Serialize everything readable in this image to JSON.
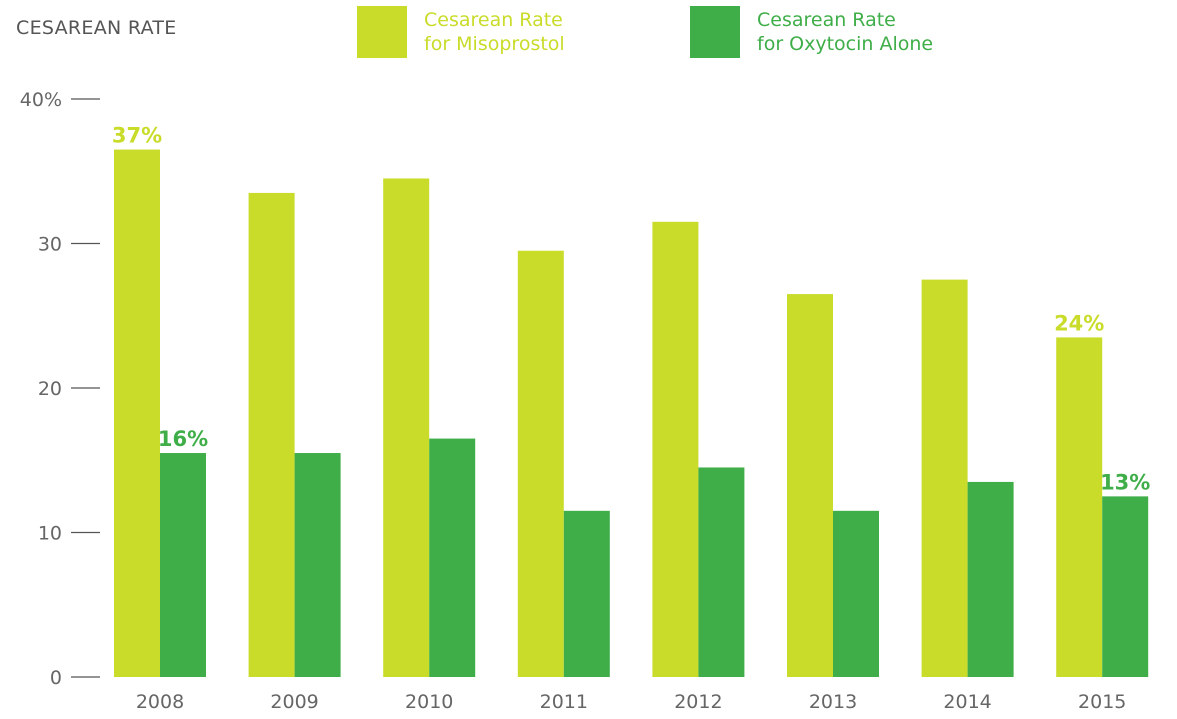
{
  "colors": {
    "misoprostol": "#c9dc2a",
    "oxytocin": "#3fae49",
    "axis": "#555555",
    "tick_text": "#666666"
  },
  "legend": [
    {
      "line1": "Cesarean Rate",
      "line2": "for Misoprostol",
      "color_key": "misoprostol"
    },
    {
      "line1": "Cesarean Rate",
      "line2": "for Oxytocin Alone",
      "color_key": "oxytocin"
    }
  ],
  "chart_data": {
    "type": "bar",
    "title": "",
    "ylabel": "CESAREAN RATE",
    "xlabel": "",
    "categories": [
      "2008",
      "2009",
      "2010",
      "2011",
      "2012",
      "2013",
      "2014",
      "2015"
    ],
    "series": [
      {
        "name": "Cesarean Rate for Misoprostol",
        "values": [
          36.5,
          33.5,
          34.5,
          29.5,
          31.5,
          26.5,
          27.5,
          23.5
        ]
      },
      {
        "name": "Cesarean Rate for Oxytocin Alone",
        "values": [
          15.5,
          15.5,
          16.5,
          11.5,
          14.5,
          11.5,
          13.5,
          12.5
        ]
      }
    ],
    "ylim": [
      0,
      40
    ],
    "yticks": [
      "0",
      "10",
      "20",
      "30",
      "40%"
    ],
    "annotations": [
      {
        "category": "2008",
        "series": 0,
        "label": "37%"
      },
      {
        "category": "2008",
        "series": 1,
        "label": "16%"
      },
      {
        "category": "2015",
        "series": 0,
        "label": "24%"
      },
      {
        "category": "2015",
        "series": 1,
        "label": "13%"
      }
    ],
    "grid": false,
    "legend_position": "top"
  }
}
